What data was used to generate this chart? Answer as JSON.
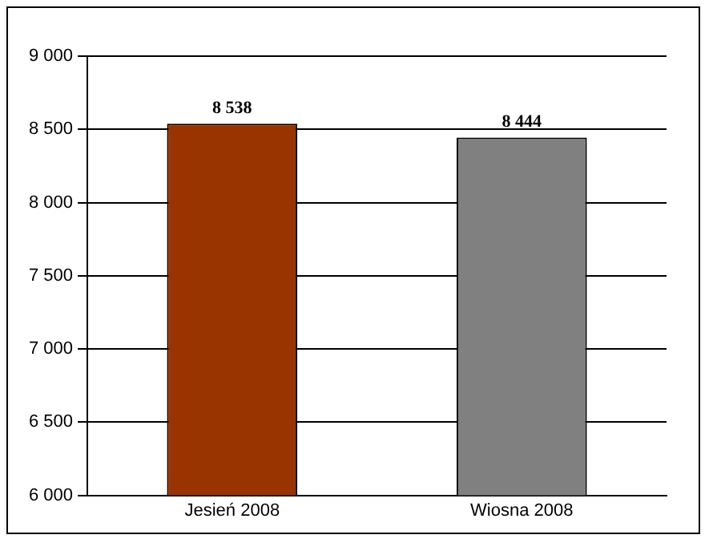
{
  "chart_data": {
    "type": "bar",
    "categories": [
      "Jesień 2008",
      "Wiosna 2008"
    ],
    "values": [
      8538,
      8444
    ],
    "colors": [
      "#993300",
      "#808080"
    ],
    "value_labels": [
      "8 538",
      "8 444"
    ],
    "ylim": [
      6000,
      9000
    ],
    "yticks": [
      {
        "value": 6000,
        "label": "6 000"
      },
      {
        "value": 6500,
        "label": "6 500"
      },
      {
        "value": 7000,
        "label": "7 000"
      },
      {
        "value": 7500,
        "label": "7 500"
      },
      {
        "value": 8000,
        "label": "8 000"
      },
      {
        "value": 8500,
        "label": "8 500"
      },
      {
        "value": 9000,
        "label": "9 000"
      }
    ],
    "grid": "y",
    "legend": false
  }
}
